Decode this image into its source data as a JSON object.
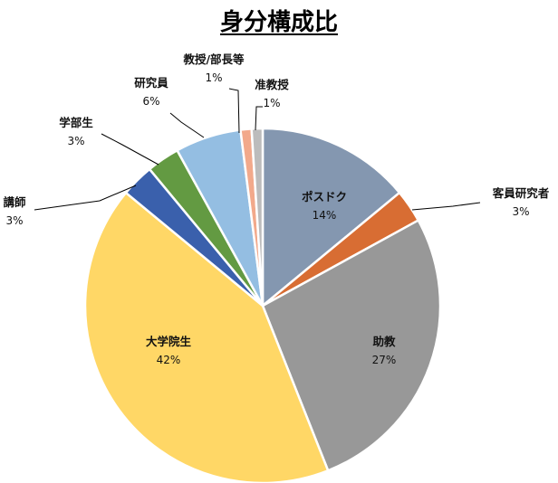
{
  "chart_data": {
    "type": "pie",
    "title": "身分構成比",
    "slices": [
      {
        "name": "ポスドク",
        "value": 14,
        "label": "14%",
        "color": "#8497B0"
      },
      {
        "name": "客員研究者",
        "value": 3,
        "label": "3%",
        "color": "#D86D33"
      },
      {
        "name": "助教",
        "value": 27,
        "label": "27%",
        "color": "#989898"
      },
      {
        "name": "大学院生",
        "value": 42,
        "label": "42%",
        "color": "#FFD766"
      },
      {
        "name": "講師",
        "value": 3,
        "label": "3%",
        "color": "#3A60AC"
      },
      {
        "name": "学部生",
        "value": 3,
        "label": "3%",
        "color": "#639A42"
      },
      {
        "name": "研究員",
        "value": 6,
        "label": "6%",
        "color": "#94BEE2"
      },
      {
        "name": "教授/部長等",
        "value": 1,
        "label": "1%",
        "color": "#F2A98B"
      },
      {
        "name": "准教授",
        "value": 1,
        "label": "1%",
        "color": "#BCBCBC"
      }
    ],
    "legend": "none",
    "label_style": "data labels with category name and percentage"
  }
}
